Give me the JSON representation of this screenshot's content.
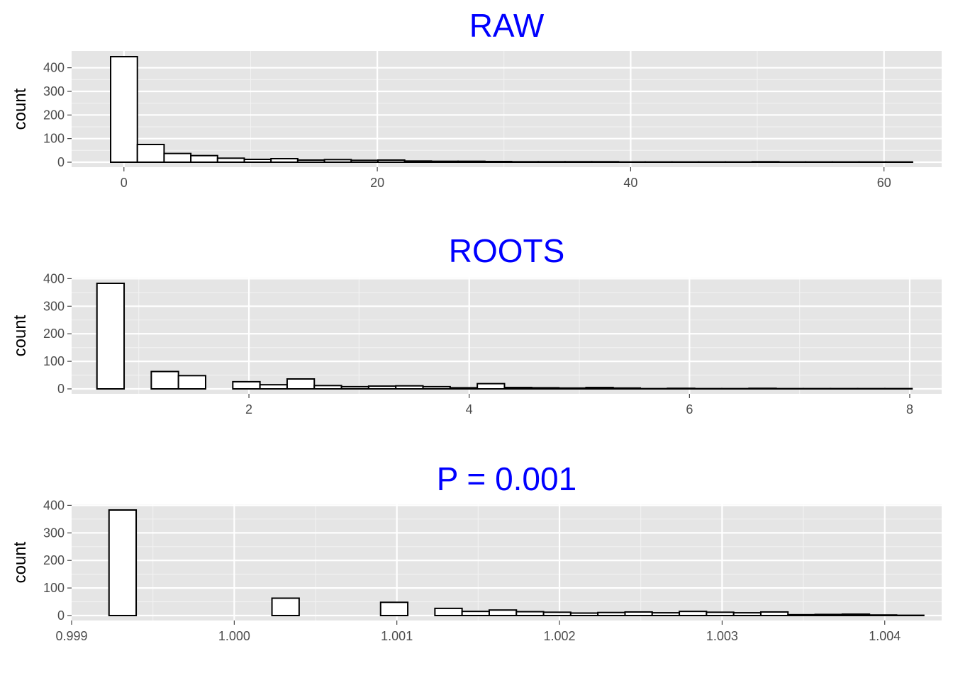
{
  "chart_data": [
    {
      "type": "bar",
      "title": "RAW",
      "ylabel": "count",
      "xlabel": "",
      "xlim": [
        -4.13,
        64.55
      ],
      "ylim": [
        0,
        447
      ],
      "x_ticks": [
        0,
        20,
        40,
        60
      ],
      "x_tick_labels": [
        "0",
        "20",
        "40",
        "60"
      ],
      "y_ticks": [
        0,
        100,
        200,
        300,
        400
      ],
      "y_tick_labels": [
        "0",
        "100",
        "200",
        "300",
        "400"
      ],
      "bin_start": -1.05,
      "bin_width": 2.11,
      "values": [
        447,
        75,
        37,
        28,
        17,
        12,
        15,
        9,
        11,
        8,
        9,
        5,
        4,
        4,
        3,
        2,
        2,
        2,
        2,
        1,
        1,
        1,
        1,
        1,
        2,
        1,
        1,
        1,
        1,
        1
      ]
    },
    {
      "type": "bar",
      "title": "ROOTS",
      "ylabel": "count",
      "xlabel": "",
      "xlim": [
        0.39,
        8.29
      ],
      "ylim": [
        0,
        383
      ],
      "x_ticks": [
        2,
        4,
        6,
        8
      ],
      "x_tick_labels": [
        "2",
        "4",
        "6",
        "8"
      ],
      "y_ticks": [
        0,
        100,
        200,
        300,
        400
      ],
      "y_tick_labels": [
        "0",
        "100",
        "200",
        "300",
        "400"
      ],
      "bin_start": 0.62,
      "bin_width": 0.2467,
      "values": [
        383,
        0,
        63,
        48,
        0,
        26,
        15,
        36,
        12,
        8,
        10,
        11,
        8,
        4,
        19,
        5,
        4,
        3,
        5,
        3,
        1,
        2,
        1,
        1,
        2,
        1,
        1,
        1,
        1,
        1
      ]
    },
    {
      "type": "bar",
      "title": "P = 0.001",
      "ylabel": "count",
      "xlabel": "",
      "xlim": [
        0.999,
        1.00435
      ],
      "ylim": [
        0,
        383
      ],
      "x_ticks": [
        0.999,
        1.0,
        1.001,
        1.002,
        1.003,
        1.004
      ],
      "x_tick_labels": [
        "0.999",
        "1.000",
        "1.001",
        "1.002",
        "1.003",
        "1.004"
      ],
      "y_ticks": [
        0,
        100,
        200,
        300,
        400
      ],
      "y_tick_labels": [
        "0",
        "100",
        "200",
        "300",
        "400"
      ],
      "bin_start": 0.99923,
      "bin_width": 0.000167,
      "values": [
        383,
        0,
        0,
        0,
        0,
        0,
        63,
        0,
        0,
        0,
        48,
        0,
        26,
        15,
        20,
        14,
        12,
        9,
        11,
        13,
        10,
        15,
        12,
        10,
        13,
        3,
        4,
        5,
        2,
        1
      ]
    }
  ],
  "colors": {
    "title": "#0000ff",
    "panel_background": "#e5e5e5",
    "grid": "#ffffff",
    "bar_fill": "#ffffff",
    "bar_outline": "#000000",
    "tick_text": "#4d4d4d"
  }
}
